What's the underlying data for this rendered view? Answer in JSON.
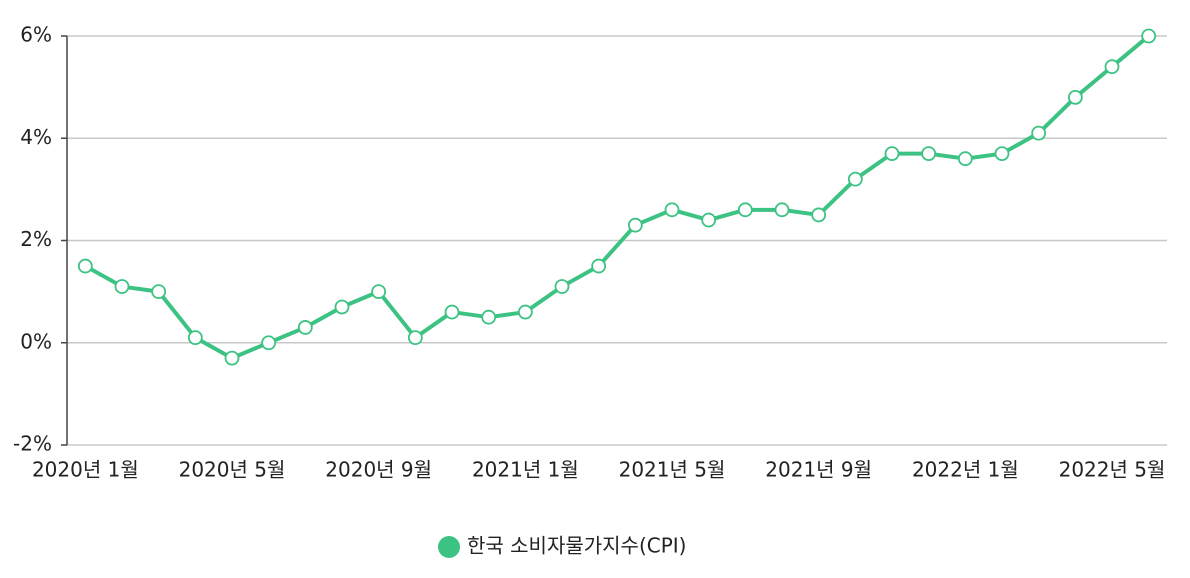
{
  "chart_data": {
    "type": "line",
    "categories": [
      "2020년 1월",
      null,
      null,
      null,
      "2020년 5월",
      null,
      null,
      null,
      "2020년 9월",
      null,
      null,
      null,
      "2021년 1월",
      null,
      null,
      null,
      "2021년 5월",
      null,
      null,
      null,
      "2021년 9월",
      null,
      null,
      null,
      "2022년 1월",
      null,
      null,
      null,
      "2022년 5월",
      null
    ],
    "series": [
      {
        "name": "한국 소비자물가지수(CPI)",
        "color": "#3cc383",
        "values": [
          1.5,
          1.1,
          1.0,
          0.1,
          -0.3,
          0.0,
          0.3,
          0.7,
          1.0,
          0.1,
          0.6,
          0.5,
          0.6,
          1.1,
          1.5,
          2.3,
          2.6,
          2.4,
          2.6,
          2.6,
          2.5,
          3.2,
          3.7,
          3.7,
          3.6,
          3.7,
          4.1,
          4.8,
          5.4,
          6.0
        ]
      }
    ],
    "ylim": [
      -2,
      6
    ],
    "yticks": [
      {
        "value": -2,
        "label": "-2%"
      },
      {
        "value": 0,
        "label": "0%"
      },
      {
        "value": 2,
        "label": "2%"
      },
      {
        "value": 4,
        "label": "4%"
      },
      {
        "value": 6,
        "label": "6%"
      }
    ],
    "grid": true,
    "legend": "bottom"
  }
}
